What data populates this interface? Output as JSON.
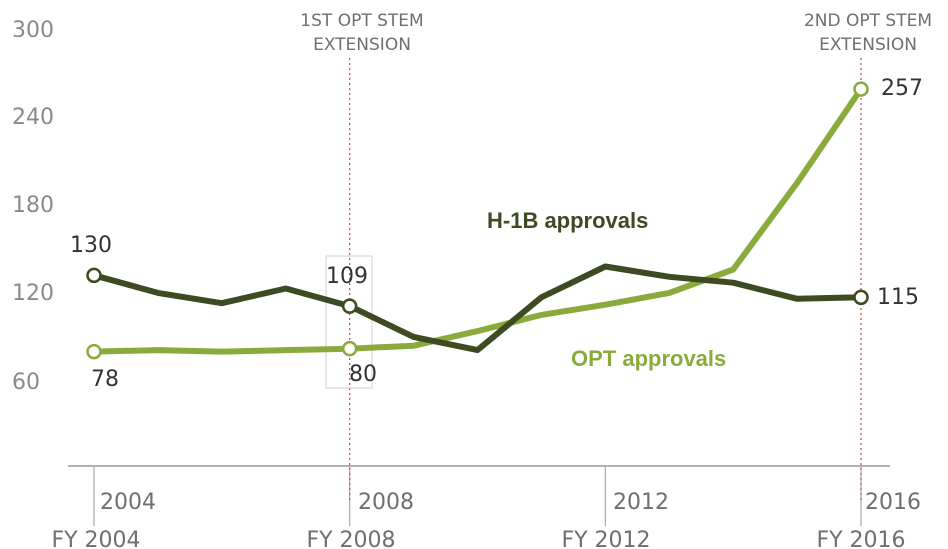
{
  "chart_data": {
    "type": "line",
    "x": [
      2004,
      2005,
      2006,
      2007,
      2008,
      2009,
      2010,
      2011,
      2012,
      2013,
      2014,
      2015,
      2016
    ],
    "xlim": [
      2004,
      2016
    ],
    "ylim": [
      0,
      300
    ],
    "yticks": [
      "300",
      "240",
      "180",
      "120",
      "60"
    ],
    "xticks_upper": [
      "2004",
      "2008",
      "2012",
      "2016"
    ],
    "xticks_lower": [
      "FY 2004",
      "FY 2008",
      "FY 2012",
      "FY 2016"
    ],
    "series": [
      {
        "name": "H-1B approvals",
        "color": "#3d4a22",
        "values": [
          130,
          118,
          111,
          121,
          109,
          88,
          79,
          115,
          136,
          129,
          125,
          114,
          115
        ]
      },
      {
        "name": "OPT approvals",
        "color": "#8aab3c",
        "values": [
          78,
          79,
          78,
          79,
          80,
          82,
          92,
          103,
          110,
          118,
          134,
          193,
          257
        ]
      }
    ],
    "data_labels": {
      "h1b_start": "130",
      "h1b_2008": "109",
      "h1b_end": "115",
      "opt_start": "78",
      "opt_2008": "80",
      "opt_end": "257"
    },
    "annotations": [
      {
        "x": 2008,
        "lines": [
          "1ST OPT STEM",
          "EXTENSION"
        ]
      },
      {
        "x": 2016,
        "lines": [
          "2ND  OPT STEM",
          "EXTENSION"
        ]
      }
    ],
    "grid": false
  }
}
